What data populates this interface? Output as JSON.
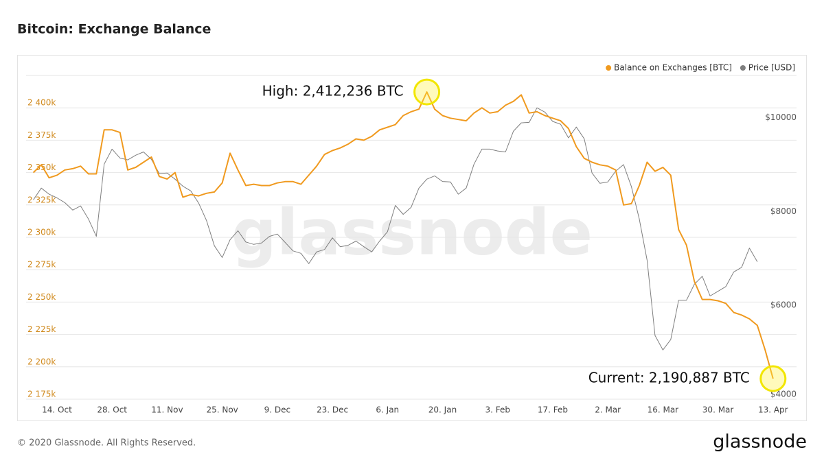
{
  "chart_data": {
    "type": "line",
    "title": "Bitcoin: Exchange Balance",
    "footer": "© 2020 Glassnode. All Rights Reserved.",
    "logo": "glassnode",
    "watermark": "glassnode",
    "legend": "top-right",
    "grid": true,
    "categories": [
      null,
      null,
      null,
      "14. Oct",
      null,
      null,
      null,
      null,
      null,
      null,
      "28. Oct",
      null,
      null,
      null,
      null,
      null,
      null,
      "11. Nov",
      null,
      null,
      null,
      null,
      null,
      null,
      "25. Nov",
      null,
      null,
      null,
      null,
      null,
      null,
      "9. Dec",
      null,
      null,
      null,
      null,
      null,
      null,
      "23. Dec",
      null,
      null,
      null,
      null,
      null,
      null,
      "6. Jan",
      null,
      null,
      null,
      null,
      null,
      null,
      "20. Jan",
      null,
      null,
      null,
      null,
      null,
      null,
      "3. Feb",
      null,
      null,
      null,
      null,
      null,
      null,
      "17. Feb",
      null,
      null,
      null,
      null,
      null,
      null,
      "2. Mar",
      null,
      null,
      null,
      null,
      null,
      null,
      "16. Mar",
      null,
      null,
      null,
      null,
      null,
      null,
      "30. Mar",
      null,
      null,
      null,
      null,
      null,
      null,
      "13. Apr"
    ],
    "series": [
      {
        "name": "Balance on Exchanges [BTC]",
        "color": "#f09a1f",
        "axis": "y",
        "values": [
          2350000,
          2356000,
          2346000,
          2348000,
          2352000,
          2353000,
          2355000,
          2349000,
          2349000,
          2383000,
          2383000,
          2381000,
          2352000,
          2354000,
          2358000,
          2362000,
          2347000,
          2345000,
          2350000,
          2331000,
          2333000,
          2332000,
          2334000,
          2335000,
          2342000,
          2365000,
          2352000,
          2340000,
          2341000,
          2340000,
          2340000,
          2342000,
          2343000,
          2343000,
          2341000,
          2348000,
          2355000,
          2364000,
          2367000,
          2369000,
          2372000,
          2376000,
          2375000,
          2378000,
          2383000,
          2385000,
          2387000,
          2394000,
          2397000,
          2399000,
          2412236,
          2399000,
          2394000,
          2392000,
          2391000,
          2390000,
          2396000,
          2400000,
          2396000,
          2397000,
          2402000,
          2405000,
          2410000,
          2396000,
          2397000,
          2394000,
          2392000,
          2390000,
          2384000,
          2370000,
          2361000,
          2358000,
          2356000,
          2355000,
          2352000,
          2325000,
          2326000,
          2340000,
          2358000,
          2351000,
          2354000,
          2348000,
          2306000,
          2294000,
          2266000,
          2252000,
          2252000,
          2251000,
          2249000,
          2242000,
          2240000,
          2237000,
          2232000,
          2213000,
          2190887
        ]
      },
      {
        "name": "Price [USD]",
        "color": "#7f7f7f",
        "axis": "y2",
        "values": [
          8250,
          8500,
          8370,
          8290,
          8190,
          8030,
          8120,
          7840,
          7470,
          9010,
          9330,
          9140,
          9100,
          9200,
          9270,
          9110,
          8810,
          8820,
          8690,
          8540,
          8440,
          8180,
          7810,
          7270,
          7020,
          7400,
          7590,
          7350,
          7300,
          7330,
          7470,
          7520,
          7340,
          7160,
          7110,
          6890,
          7140,
          7190,
          7440,
          7250,
          7280,
          7370,
          7250,
          7140,
          7370,
          7570,
          8130,
          7940,
          8090,
          8500,
          8690,
          8760,
          8640,
          8630,
          8370,
          8500,
          9010,
          9330,
          9330,
          9290,
          9270,
          9710,
          9890,
          9900,
          10210,
          10120,
          9920,
          9860,
          9570,
          9800,
          9550,
          8820,
          8600,
          8630,
          8860,
          9000,
          8530,
          7840,
          6960,
          5360,
          5050,
          5270,
          6110,
          6110,
          6450,
          6620,
          6200,
          6300,
          6400,
          6710,
          6810,
          7220,
          6930,
          null,
          null
        ]
      }
    ],
    "ylim": [
      2175000,
      2425000
    ],
    "yticks": [
      {
        "value": 2175000,
        "label": "2 175k"
      },
      {
        "value": 2200000,
        "label": "2 200k"
      },
      {
        "value": 2225000,
        "label": "2 225k"
      },
      {
        "value": 2250000,
        "label": "2 250k"
      },
      {
        "value": 2275000,
        "label": "2 275k"
      },
      {
        "value": 2300000,
        "label": "2 300k"
      },
      {
        "value": 2325000,
        "label": "2 325k"
      },
      {
        "value": 2350000,
        "label": "2 350k"
      },
      {
        "value": 2375000,
        "label": "2 375k"
      },
      {
        "value": 2400000,
        "label": "2 400k"
      }
    ],
    "y2lim": [
      4000,
      10900
    ],
    "y2ticks": [
      {
        "value": 4000,
        "label": "$4000"
      },
      {
        "value": 6000,
        "label": "$6000"
      },
      {
        "value": 8000,
        "label": "$8000"
      },
      {
        "value": 10000,
        "label": "$10000"
      }
    ],
    "annotations": [
      {
        "text": "High: 2,412,236 BTC",
        "series": 0,
        "index": 50
      },
      {
        "text": "Current: 2,190,887 BTC",
        "series": 0,
        "index": 94
      }
    ]
  }
}
